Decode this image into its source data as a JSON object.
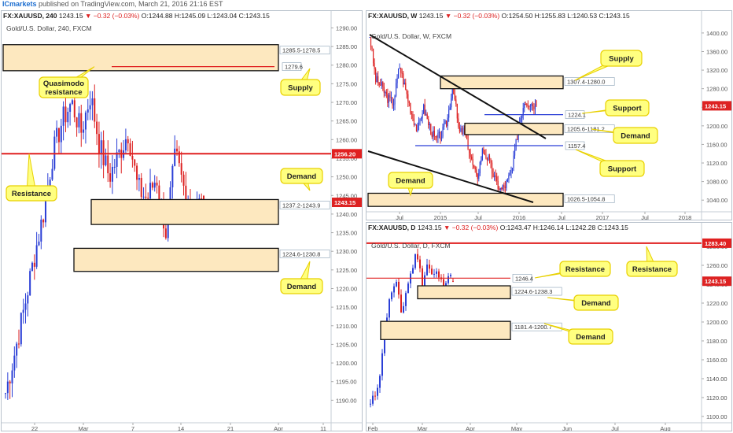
{
  "header": {
    "brand": "ICmarkets",
    "published": " published on TradingView.com, March 21, 2016 21:16 EST"
  },
  "colors": {
    "up": "#2b3fd6",
    "down": "#dd2222",
    "zone_fill": "#fde8bf",
    "callout_fill": "#ffff80",
    "callout_stroke": "#e8d000",
    "resistance_line": "#e02020",
    "support_line": "#2b3fd6",
    "trend_line": "#111111"
  },
  "chart_data": [
    {
      "id": "h4",
      "type": "candlestick",
      "ohlc": {
        "symbol": "FX:XAUUSD, 240",
        "last": "1243.15",
        "change": "−0.32 (−0.03%)",
        "o": "O:1244.88",
        "h": "H:1245.09",
        "l": "L:1243.04",
        "c": "C:1243.15"
      },
      "title": "Gold/U.S. Dollar, 240, FXCM",
      "ylim": [
        1185,
        1292
      ],
      "y_ticks": [
        "1190.00",
        "1195.00",
        "1200.00",
        "1205.00",
        "1210.00",
        "1215.00",
        "1220.00",
        "1225.00",
        "1230.00",
        "1235.00",
        "1240.00",
        "1245.00",
        "1250.00",
        "1255.00",
        "1260.00",
        "1265.00",
        "1270.00",
        "1275.00",
        "1280.00",
        "1285.00",
        "1290.00"
      ],
      "x_ticks": [
        "22",
        "Mar",
        "7",
        "14",
        "21",
        "Apr",
        "11"
      ],
      "last_price_tag": "1243.15",
      "resistance_price_tag": "1256.20",
      "zones": [
        {
          "label": "1285.5-1278.5",
          "top": 1285.5,
          "bottom": 1278.5
        },
        {
          "label": "1237.2-1243.9",
          "top": 1243.9,
          "bottom": 1237.2
        },
        {
          "label": "1224.6-1230.8",
          "top": 1230.8,
          "bottom": 1224.6
        }
      ],
      "levels": [
        {
          "label": "1279.6",
          "price": 1279.6
        },
        {
          "price": 1256.2
        }
      ],
      "callouts": [
        {
          "lines": [
            "Quasimodo",
            "resistance"
          ]
        },
        {
          "lines": [
            "Supply"
          ]
        },
        {
          "lines": [
            "Resistance"
          ]
        },
        {
          "lines": [
            "Demand"
          ]
        },
        {
          "lines": [
            "Demand"
          ]
        }
      ]
    },
    {
      "id": "weekly",
      "type": "candlestick",
      "ohlc": {
        "symbol": "FX:XAUUSD, W",
        "last": "1243.15",
        "change": "−0.32 (−0.03%)",
        "o": "O:1254.50",
        "h": "H:1255.83",
        "l": "L:1240.53",
        "c": "C:1243.15"
      },
      "title": "Gold/U.S. Dollar, W, FXCM",
      "ylim": [
        1020,
        1410
      ],
      "y_ticks": [
        "1040.00",
        "1080.00",
        "1120.00",
        "1160.00",
        "1200.00",
        "1240.00",
        "1280.00",
        "1320.00",
        "1360.00",
        "1400.00"
      ],
      "x_ticks": [
        "Jul",
        "2015",
        "Jul",
        "2016",
        "Jul",
        "2017",
        "Jul",
        "2018"
      ],
      "last_price_tag": "1243.15",
      "zones": [
        {
          "label": "1307.4-1280.0",
          "top": 1307.4,
          "bottom": 1280.0
        },
        {
          "label": "1205.6-1181.2",
          "top": 1205.6,
          "bottom": 1181.2
        },
        {
          "label": "1026.5-1054.8",
          "top": 1054.8,
          "bottom": 1026.5
        }
      ],
      "levels": [
        {
          "label": "1224.1",
          "price": 1224.1
        },
        {
          "label": "1157.4",
          "price": 1157.4
        }
      ],
      "callouts": [
        {
          "lines": [
            "Supply"
          ]
        },
        {
          "lines": [
            "Support"
          ]
        },
        {
          "lines": [
            "Demand"
          ]
        },
        {
          "lines": [
            "Support"
          ]
        },
        {
          "lines": [
            "Demand"
          ]
        }
      ]
    },
    {
      "id": "daily",
      "type": "candlestick",
      "ohlc": {
        "symbol": "FX:XAUUSD, D",
        "last": "1243.15",
        "change": "−0.32 (−0.03%)",
        "o": "O:1243.47",
        "h": "H:1246.14",
        "l": "L:1242.28",
        "c": "C:1243.15"
      },
      "title": "Gold/U.S. Dollar, D, FXCM",
      "ylim": [
        1095,
        1290
      ],
      "y_ticks": [
        "1100.00",
        "1120.00",
        "1140.00",
        "1160.00",
        "1180.00",
        "1200.00",
        "1220.00",
        "1240.00",
        "1260.00",
        "1280.00"
      ],
      "x_ticks": [
        "Feb",
        "Mar",
        "Apr",
        "May",
        "Jun",
        "Jul",
        "Aug"
      ],
      "last_price_tag": "1243.15",
      "resistance_price_tag": "1283.40",
      "zones": [
        {
          "label": "1224.6-1238.3",
          "top": 1238.3,
          "bottom": 1224.6
        },
        {
          "label": "1181.4-1200.7",
          "top": 1200.7,
          "bottom": 1181.4
        }
      ],
      "levels": [
        {
          "label": "1246.4",
          "price": 1246.4
        },
        {
          "price": 1283.4
        }
      ],
      "callouts": [
        {
          "lines": [
            "Resistance"
          ]
        },
        {
          "lines": [
            "Resistance"
          ]
        },
        {
          "lines": [
            "Demand"
          ]
        },
        {
          "lines": [
            "Demand"
          ]
        }
      ]
    }
  ]
}
